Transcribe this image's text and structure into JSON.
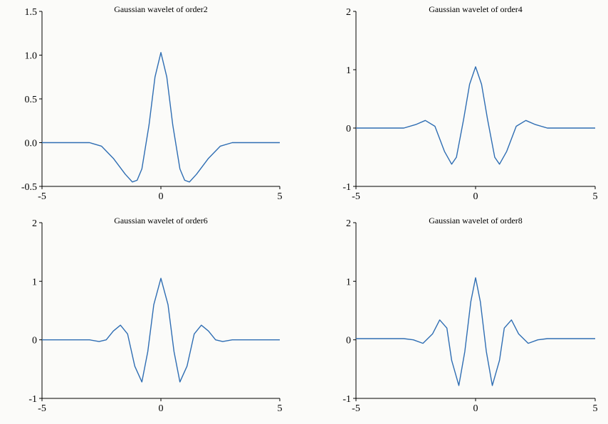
{
  "chart_data": [
    {
      "type": "line",
      "title": "Gaussian wavelet of order2",
      "xlim": [
        -5,
        5
      ],
      "ylim": [
        -0.5,
        1.5
      ],
      "x_ticks": [
        "-5",
        "0",
        "5"
      ],
      "y_ticks": [
        "-0.5",
        "0.0",
        "0.5",
        "1.0",
        "1.5"
      ],
      "line_color": "#2e6db3",
      "grid": false,
      "x": [
        -5,
        -3,
        -2.5,
        -2,
        -1.5,
        -1.2,
        -1,
        -0.8,
        -0.5,
        -0.25,
        0,
        0.25,
        0.5,
        0.8,
        1,
        1.2,
        1.5,
        2,
        2.5,
        3,
        5
      ],
      "y": [
        0,
        0,
        -0.04,
        -0.18,
        -0.36,
        -0.45,
        -0.43,
        -0.3,
        0.2,
        0.75,
        1.03,
        0.75,
        0.2,
        -0.3,
        -0.43,
        -0.45,
        -0.36,
        -0.18,
        -0.04,
        0,
        0
      ]
    },
    {
      "type": "line",
      "title": "Gaussian wavelet of order4",
      "xlim": [
        -5,
        5
      ],
      "ylim": [
        -1,
        2
      ],
      "x_ticks": [
        "-5",
        "0",
        "5"
      ],
      "y_ticks": [
        "-1",
        "0",
        "1",
        "2"
      ],
      "line_color": "#2e6db3",
      "grid": false,
      "x": [
        -5,
        -3,
        -2.5,
        -2.1,
        -1.7,
        -1.3,
        -1,
        -0.8,
        -0.5,
        -0.25,
        0,
        0.25,
        0.5,
        0.8,
        1,
        1.3,
        1.7,
        2.1,
        2.5,
        3,
        5
      ],
      "y": [
        0,
        0,
        0.06,
        0.13,
        0.03,
        -0.4,
        -0.62,
        -0.5,
        0.15,
        0.75,
        1.05,
        0.75,
        0.15,
        -0.5,
        -0.62,
        -0.4,
        0.03,
        0.13,
        0.06,
        0,
        0
      ]
    },
    {
      "type": "line",
      "title": "Gaussian wavelet of order6",
      "xlim": [
        -5,
        5
      ],
      "ylim": [
        -1,
        2
      ],
      "x_ticks": [
        "-5",
        "0",
        "5"
      ],
      "y_ticks": [
        "-1",
        "0",
        "1",
        "2"
      ],
      "line_color": "#2e6db3",
      "grid": false,
      "x": [
        -5,
        -3,
        -2.6,
        -2.3,
        -2,
        -1.7,
        -1.4,
        -1.1,
        -0.8,
        -0.55,
        -0.3,
        0,
        0.3,
        0.55,
        0.8,
        1.1,
        1.4,
        1.7,
        2,
        2.3,
        2.6,
        3,
        5
      ],
      "y": [
        0,
        0,
        -0.03,
        0,
        0.15,
        0.25,
        0.1,
        -0.45,
        -0.72,
        -0.2,
        0.6,
        1.05,
        0.6,
        -0.2,
        -0.72,
        -0.45,
        0.1,
        0.25,
        0.15,
        0,
        -0.03,
        0,
        0
      ]
    },
    {
      "type": "line",
      "title": "Gaussian wavelet of order8",
      "xlim": [
        -5,
        5
      ],
      "ylim": [
        -1,
        2
      ],
      "x_ticks": [
        "-5",
        "0",
        "5"
      ],
      "y_ticks": [
        "-1",
        "0",
        "1",
        "2"
      ],
      "line_color": "#2e6db3",
      "grid": false,
      "x": [
        -5,
        -3,
        -2.6,
        -2.2,
        -1.8,
        -1.5,
        -1.2,
        -1,
        -0.7,
        -0.45,
        -0.2,
        0,
        0.2,
        0.45,
        0.7,
        1,
        1.2,
        1.5,
        1.8,
        2.2,
        2.6,
        3,
        5
      ],
      "y": [
        0.02,
        0.02,
        0,
        -0.06,
        0.1,
        0.34,
        0.2,
        -0.35,
        -0.78,
        -0.2,
        0.65,
        1.06,
        0.65,
        -0.2,
        -0.78,
        -0.35,
        0.2,
        0.34,
        0.1,
        -0.06,
        0,
        0.02,
        0.02
      ]
    }
  ]
}
